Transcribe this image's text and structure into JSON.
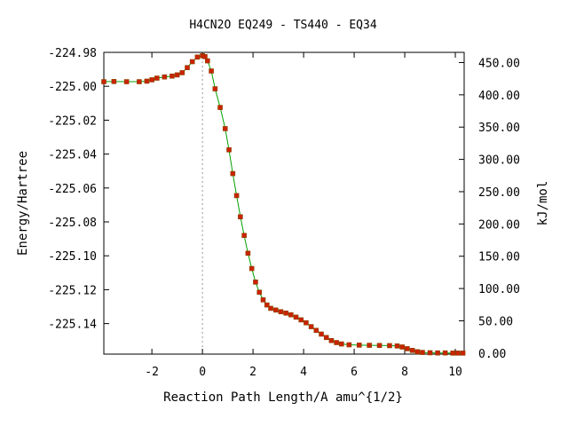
{
  "chart_data": {
    "type": "line",
    "title": "H4CN2O   EQ249 - TS440 - EQ34",
    "xlabel": "Reaction Path Length/A amu^{1/2}",
    "ylabel": "Energy/Hartree",
    "y2label": "kJ/mol",
    "xlim": [
      -3.9,
      10.35
    ],
    "ylim": [
      -225.158,
      -224.98
    ],
    "x_ticks": [
      -2,
      0,
      2,
      4,
      6,
      8,
      10
    ],
    "y_ticks": [
      -224.98,
      -225.0,
      -225.02,
      -225.04,
      -225.06,
      -225.08,
      -225.1,
      -225.12,
      -225.14
    ],
    "y_tick_labels": [
      "-224.98",
      "-225.00",
      "-225.02",
      "-225.04",
      "-225.06",
      "-225.08",
      "-225.10",
      "-225.12",
      "-225.14"
    ],
    "y2_ticks": [
      0,
      50,
      100,
      150,
      200,
      250,
      300,
      350,
      400,
      450
    ],
    "y2_tick_labels": [
      "0.00",
      "50.00",
      "100.00",
      "150.00",
      "200.00",
      "250.00",
      "300.00",
      "350.00",
      "400.00",
      "450.00"
    ],
    "y2_zero_energy": -225.1574,
    "ts_marker_x": 0.0,
    "colors": {
      "line": "#00a000",
      "marker": "#cc2200",
      "marker_edge": "#884400",
      "ts_line": "#999999"
    },
    "series": [
      {
        "x": [
          -3.9,
          -3.5,
          -3.0,
          -2.5,
          -2.2,
          -2.0,
          -1.8,
          -1.5,
          -1.2,
          -1.0,
          -0.8,
          -0.6,
          -0.4,
          -0.2,
          0.0,
          0.1,
          0.2,
          0.35,
          0.5,
          0.7,
          0.9,
          1.05,
          1.2,
          1.35,
          1.5,
          1.65,
          1.8,
          1.95,
          2.1,
          2.25,
          2.4,
          2.55,
          2.7,
          2.9,
          3.1,
          3.3,
          3.5,
          3.7,
          3.9,
          4.1,
          4.3,
          4.5,
          4.7,
          4.9,
          5.1,
          5.3,
          5.5,
          5.8,
          6.2,
          6.6,
          7.0,
          7.4,
          7.7,
          7.9,
          8.1,
          8.3,
          8.5,
          8.7,
          9.0,
          9.3,
          9.6,
          9.9,
          10.1,
          10.3
        ],
        "y": [
          -224.9973,
          -224.9972,
          -224.9973,
          -224.9973,
          -224.997,
          -224.9962,
          -224.9952,
          -224.9945,
          -224.994,
          -224.9933,
          -224.992,
          -224.989,
          -224.9855,
          -224.9828,
          -224.982,
          -224.9825,
          -224.985,
          -224.991,
          -225.0015,
          -225.0125,
          -225.025,
          -225.0375,
          -225.0515,
          -225.0645,
          -225.077,
          -225.088,
          -225.0985,
          -225.1075,
          -225.1155,
          -225.1215,
          -225.126,
          -225.129,
          -225.131,
          -225.132,
          -225.133,
          -225.1338,
          -225.1348,
          -225.1362,
          -225.1378,
          -225.1395,
          -225.1418,
          -225.144,
          -225.1462,
          -225.1482,
          -225.15,
          -225.1512,
          -225.152,
          -225.1525,
          -225.1527,
          -225.1528,
          -225.1529,
          -225.153,
          -225.1532,
          -225.1538,
          -225.1548,
          -225.1558,
          -225.1566,
          -225.157,
          -225.1572,
          -225.1573,
          -225.1573,
          -225.1574,
          -225.1574,
          -225.1574
        ]
      }
    ]
  }
}
